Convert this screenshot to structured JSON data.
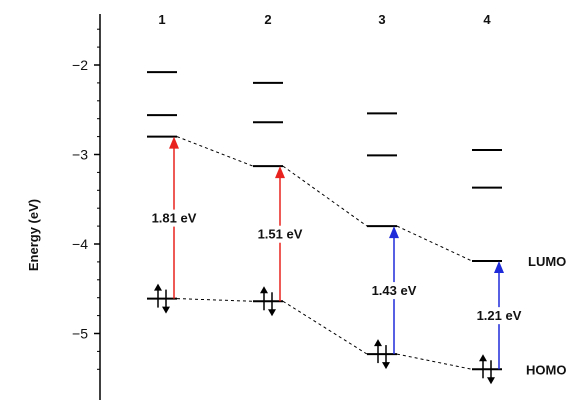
{
  "y_axis": {
    "label": "Energy (eV)",
    "ticks": [
      {
        "label": "−2",
        "value": -2
      },
      {
        "label": "−3",
        "value": -3
      },
      {
        "label": "−4",
        "value": -4
      },
      {
        "label": "−5",
        "value": -5
      }
    ],
    "range": [
      -5.55,
      -1.6
    ]
  },
  "columns": [
    {
      "label": "1",
      "lumo": -2.8,
      "homo": -4.61,
      "upper_levels": [
        -2.08,
        -2.56
      ],
      "gap_label": "1.81 eV",
      "arrow_color": "#e8231f"
    },
    {
      "label": "2",
      "lumo": -3.13,
      "homo": -4.64,
      "upper_levels": [
        -2.2,
        -2.64
      ],
      "gap_label": "1.51 eV",
      "arrow_color": "#e8231f"
    },
    {
      "label": "3",
      "lumo": -3.8,
      "homo": -5.23,
      "upper_levels": [
        -2.54,
        -3.01
      ],
      "gap_label": "1.43 eV",
      "arrow_color": "#1f2bd8"
    },
    {
      "label": "4",
      "lumo": -4.19,
      "homo": -5.4,
      "upper_levels": [
        -2.95,
        -3.37
      ],
      "gap_label": "1.21 eV",
      "arrow_color": "#1f2bd8"
    }
  ],
  "labels": {
    "lumo": "LUMO",
    "homo": "HOMO"
  }
}
